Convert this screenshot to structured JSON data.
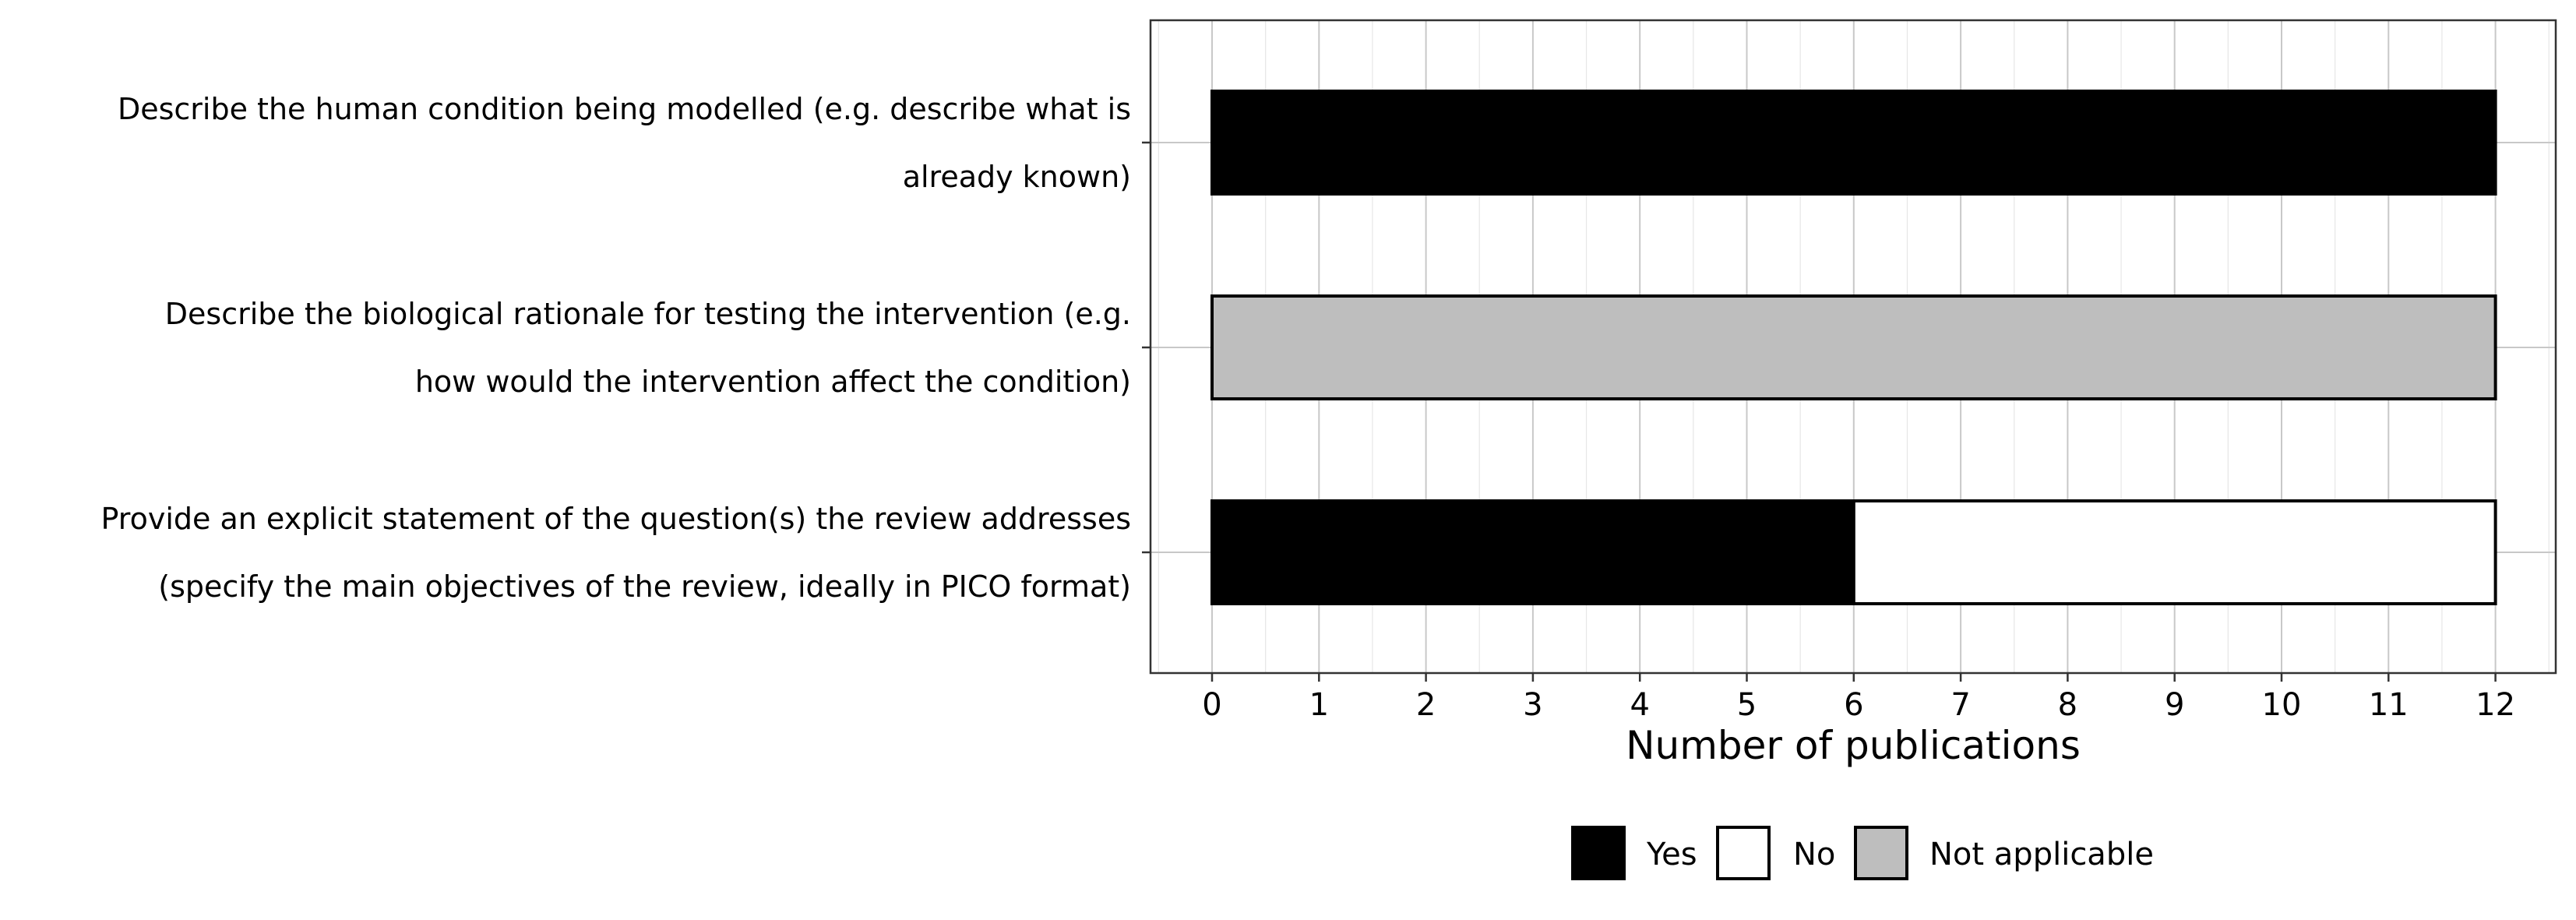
{
  "chart_data": {
    "type": "bar",
    "orientation": "horizontal",
    "stacked": true,
    "xlabel": "Number of publications",
    "xlim": [
      -0.5,
      12.7
    ],
    "xticks": [
      0,
      1,
      2,
      3,
      4,
      5,
      6,
      7,
      8,
      9,
      10,
      11,
      12
    ],
    "grid": true,
    "legend_position": "bottom",
    "categories": [
      {
        "lines": [
          "Describe the human condition being modelled (e.g. describe what is",
          "already known)"
        ],
        "segments": [
          {
            "series": "Yes",
            "value": 12
          }
        ]
      },
      {
        "lines": [
          "Describe the biological rationale for testing the intervention (e.g.",
          "how would the intervention affect the condition)"
        ],
        "segments": [
          {
            "series": "Not applicable",
            "value": 12
          }
        ]
      },
      {
        "lines": [
          "Provide an explicit statement of the question(s) the review addresses",
          "(specify the main objectives of the review, ideally in PICO format)"
        ],
        "segments": [
          {
            "series": "Yes",
            "value": 6
          },
          {
            "series": "No",
            "value": 6
          }
        ]
      }
    ],
    "series": [
      {
        "name": "Yes",
        "color": "#000000"
      },
      {
        "name": "No",
        "color": "#ffffff"
      },
      {
        "name": "Not applicable",
        "color": "#bebebe"
      }
    ]
  }
}
